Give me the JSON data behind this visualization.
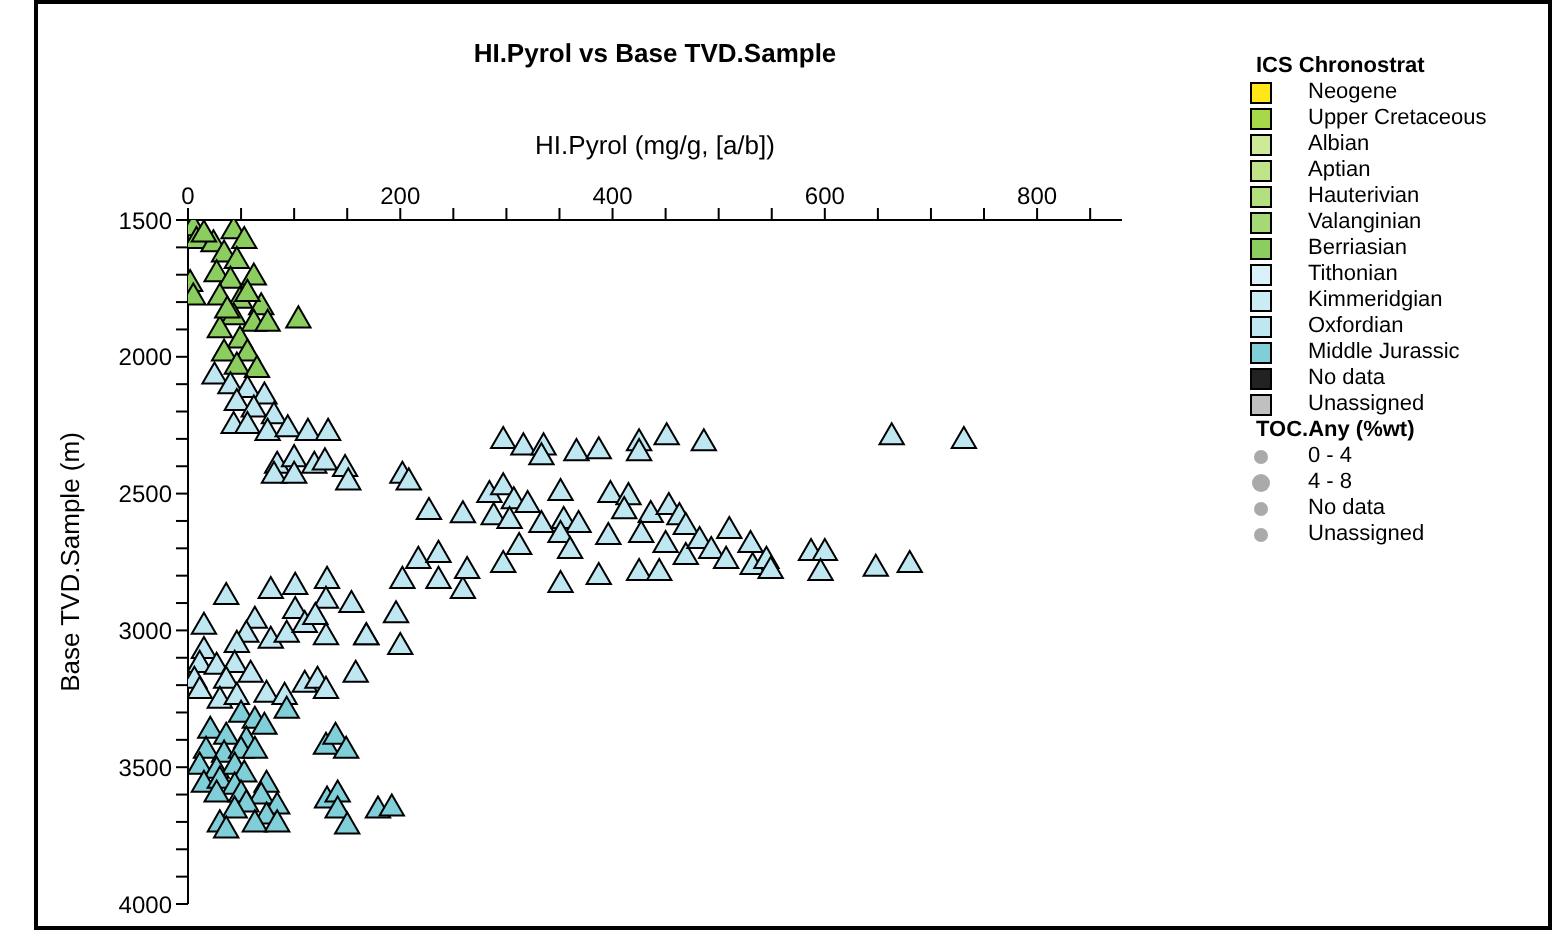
{
  "chart_data": {
    "type": "scatter",
    "title": "HI.Pyrol vs Base TVD.Sample",
    "xlabel": "HI.Pyrol (mg/g, [a/b])",
    "ylabel": "Base TVD.Sample (m)",
    "legend_title": "ICS Chronostrat",
    "legend": "right",
    "marker": "triangle",
    "grid": false,
    "xlim": [
      0,
      880
    ],
    "xticks": [
      0,
      {
        "value": 50,
        "label": null
      },
      {
        "value": 100,
        "label": null
      },
      {
        "value": 150,
        "label": null
      },
      200,
      {
        "value": 250,
        "label": null
      },
      {
        "value": 300,
        "label": null
      },
      {
        "value": 350,
        "label": null
      },
      400,
      {
        "value": 450,
        "label": null
      },
      {
        "value": 500,
        "label": null
      },
      {
        "value": 550,
        "label": null
      },
      600,
      {
        "value": 650,
        "label": null
      },
      {
        "value": 700,
        "label": null
      },
      {
        "value": 750,
        "label": null
      },
      800,
      {
        "value": 850,
        "label": null
      }
    ],
    "ylim": [
      4000,
      1500
    ],
    "yticks": [
      1500,
      {
        "value": 1600,
        "label": null
      },
      {
        "value": 1700,
        "label": null
      },
      {
        "value": 1800,
        "label": null
      },
      {
        "value": 1900,
        "label": null
      },
      2000,
      {
        "value": 2100,
        "label": null
      },
      {
        "value": 2200,
        "label": null
      },
      {
        "value": 2300,
        "label": null
      },
      {
        "value": 2400,
        "label": null
      },
      2500,
      {
        "value": 2600,
        "label": null
      },
      {
        "value": 2700,
        "label": null
      },
      {
        "value": 2800,
        "label": null
      },
      {
        "value": 2900,
        "label": null
      },
      3000,
      {
        "value": 3100,
        "label": null
      },
      {
        "value": 3200,
        "label": null
      },
      {
        "value": 3300,
        "label": null
      },
      {
        "value": 3400,
        "label": null
      },
      3500,
      {
        "value": 3600,
        "label": null
      },
      {
        "value": 3700,
        "label": null
      },
      {
        "value": 3800,
        "label": null
      },
      {
        "value": 3900,
        "label": null
      },
      4000
    ],
    "annotations": [
      "TOC.Any (%wt)",
      "0 - 4",
      "4 - 8",
      "No data",
      "Unassigned"
    ],
    "series": [
      {
        "name": "Neogene",
        "color": "#ffe619"
      },
      {
        "name": "Upper Cretaceous",
        "color": "#a6d84a"
      },
      {
        "name": "Albian",
        "color": "#ccea97"
      },
      {
        "name": "Aptian",
        "color": "#bfe48a"
      },
      {
        "name": "Hauterivian",
        "color": "#b3df7f"
      },
      {
        "name": "Valanginian",
        "color": "#a6d975"
      },
      {
        "name": "Berriasian",
        "color": "#8ccd60",
        "x": [
          5,
          8,
          43,
          53,
          24,
          34,
          46,
          2,
          5,
          27,
          40,
          62,
          30,
          49,
          69,
          43,
          62,
          104,
          30,
          49,
          34,
          56,
          46,
          65,
          15,
          56,
          37,
          75
        ],
        "values": [
          1530,
          1577,
          1541,
          1577,
          1589,
          1626,
          1650,
          1734,
          1783,
          1698,
          1722,
          1710,
          1783,
          1795,
          1819,
          1855,
          1879,
          1867,
          1903,
          1940,
          1988,
          1988,
          2036,
          2048,
          1553,
          1770,
          1831,
          1879
        ]
      },
      {
        "name": "Tithonian",
        "color": "#d9f1f7"
      },
      {
        "name": "Kimmeridgian",
        "color": "#ccecf4"
      },
      {
        "name": "Oxfordian",
        "color": "#bfe7f1",
        "x": [
          25,
          40,
          56,
          72,
          46,
          62,
          43,
          56,
          81,
          75,
          94,
          113,
          132,
          84,
          81,
          100,
          100,
          119,
          129,
          148,
          151,
          202,
          208,
          227,
          259,
          297,
          316,
          335,
          333,
          366,
          387,
          425,
          425,
          451,
          486,
          663,
          731,
          284,
          297,
          307,
          288,
          303,
          320,
          351,
          333,
          354,
          368,
          351,
          360,
          396,
          398,
          415,
          411,
          436,
          453,
          463,
          469,
          427,
          450,
          469,
          482,
          493,
          510,
          507,
          530,
          532,
          545,
          549,
          587,
          600,
          596,
          648,
          680,
          217,
          236,
          202,
          236,
          259,
          263,
          297,
          312,
          351,
          387,
          425,
          444,
          196,
          200,
          168,
          15,
          36,
          78,
          101,
          131,
          130,
          154,
          101,
          63,
          55,
          46,
          78,
          93,
          110,
          120,
          130,
          168,
          15,
          11,
          27,
          44,
          59,
          6,
          11,
          36,
          30,
          46,
          74,
          91,
          110,
          122,
          130,
          158
        ],
        "values": [
          2072,
          2108,
          2121,
          2145,
          2169,
          2193,
          2253,
          2253,
          2217,
          2278,
          2265,
          2278,
          2278,
          2398,
          2435,
          2374,
          2435,
          2398,
          2386,
          2410,
          2459,
          2435,
          2459,
          2567,
          2579,
          2308,
          2331,
          2331,
          2367,
          2352,
          2345,
          2316,
          2352,
          2294,
          2316,
          2294,
          2308,
          2505,
          2477,
          2528,
          2586,
          2600,
          2542,
          2498,
          2615,
          2600,
          2615,
          2651,
          2710,
          2659,
          2505,
          2513,
          2564,
          2578,
          2549,
          2586,
          2622,
          2651,
          2688,
          2732,
          2673,
          2710,
          2637,
          2746,
          2688,
          2768,
          2746,
          2783,
          2717,
          2717,
          2790,
          2775,
          2761,
          2746,
          2724,
          2819,
          2819,
          2856,
          2783,
          2761,
          2695,
          2834,
          2805,
          2790,
          2790,
          2945,
          3061,
          3025,
          2987,
          2878,
          2856,
          2841,
          2819,
          2892,
          2907,
          2929,
          2965,
          3016,
          3053,
          3038,
          3016,
          2980,
          2951,
          3025,
          3025,
          3075,
          3126,
          3133,
          3126,
          3162,
          3184,
          3221,
          3184,
          3257,
          3243,
          3235,
          3243,
          3199,
          3184,
          3221,
          3162
        ]
      },
      {
        "name": "Middle Jurassic",
        "color": "#80cfd8",
        "x": [
          93,
          50,
          63,
          72,
          21,
          36,
          55,
          17,
          34,
          50,
          63,
          130,
          139,
          149,
          11,
          27,
          44,
          53,
          15,
          30,
          44,
          27,
          50,
          74,
          69,
          131,
          141,
          141,
          150,
          84,
          55,
          44,
          74,
          63,
          30,
          36,
          84,
          179,
          192
        ],
        "values": [
          3294,
          3308,
          3330,
          3352,
          3367,
          3389,
          3403,
          3440,
          3454,
          3440,
          3440,
          3425,
          3389,
          3440,
          3498,
          3513,
          3498,
          3527,
          3564,
          3549,
          3571,
          3600,
          3600,
          3564,
          3607,
          3622,
          3600,
          3658,
          3717,
          3644,
          3636,
          3658,
          3680,
          3709,
          3709,
          3731,
          3709,
          3658,
          3651
        ]
      },
      {
        "name": "No data",
        "color": "#222222"
      },
      {
        "name": "Unassigned",
        "color": "#c0c0c0"
      }
    ]
  }
}
